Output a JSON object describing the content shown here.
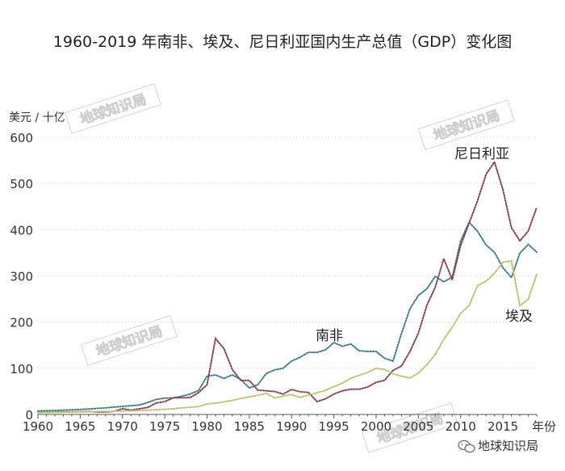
{
  "chart_data": {
    "type": "line",
    "title": "1960-2019 年南非、埃及、尼日利亚国内生产总值（GDP）变化图",
    "ylabel": "美元 / 十亿",
    "xlabel": "年份",
    "xlim": [
      1960,
      2019
    ],
    "ylim": [
      0,
      600
    ],
    "x_ticks": [
      1960,
      1965,
      1970,
      1975,
      1980,
      1985,
      1990,
      1995,
      2000,
      2005,
      2010,
      2015
    ],
    "y_ticks": [
      0,
      100,
      200,
      300,
      400,
      500,
      600
    ],
    "grid": true,
    "legend": "direct-labels",
    "series": [
      {
        "name": "南非",
        "color": "#3f7f86",
        "x": [
          1960,
          1961,
          1962,
          1963,
          1964,
          1965,
          1966,
          1967,
          1968,
          1969,
          1970,
          1971,
          1972,
          1973,
          1974,
          1975,
          1976,
          1977,
          1978,
          1979,
          1980,
          1981,
          1982,
          1983,
          1984,
          1985,
          1986,
          1987,
          1988,
          1989,
          1990,
          1991,
          1992,
          1993,
          1994,
          1995,
          1996,
          1997,
          1998,
          1999,
          2000,
          2001,
          2002,
          2003,
          2004,
          2005,
          2006,
          2007,
          2008,
          2009,
          2010,
          2011,
          2012,
          2013,
          2014,
          2015,
          2016,
          2017,
          2018,
          2019
        ],
        "values": [
          7.6,
          8.0,
          8.4,
          9.2,
          10.0,
          10.9,
          11.9,
          13.2,
          14.1,
          15.9,
          17.3,
          18.9,
          20.3,
          26.0,
          32.6,
          35.4,
          35.9,
          39.4,
          44.0,
          51.7,
          82.9,
          85.5,
          78.1,
          85.6,
          75.7,
          57.2,
          64.2,
          88.5,
          96.6,
          100.1,
          115.6,
          123.9,
          134.5,
          134.3,
          139.8,
          155.5,
          147.6,
          152.6,
          137.8,
          136.4,
          136.4,
          121.5,
          115.5,
          175.3,
          228.6,
          257.8,
          271.8,
          299.0,
          287.1,
          297.2,
          375.3,
          416.4,
          396.3,
          366.8,
          351.0,
          317.6,
          296.4,
          349.4,
          368.3,
          351.4
        ]
      },
      {
        "name": "尼日利亚",
        "color": "#8a4150",
        "x": [
          1960,
          1961,
          1962,
          1963,
          1964,
          1965,
          1966,
          1967,
          1968,
          1969,
          1970,
          1971,
          1972,
          1973,
          1974,
          1975,
          1976,
          1977,
          1978,
          1979,
          1980,
          1981,
          1982,
          1983,
          1984,
          1985,
          1986,
          1987,
          1988,
          1989,
          1990,
          1991,
          1992,
          1993,
          1994,
          1995,
          1996,
          1997,
          1998,
          1999,
          2000,
          2001,
          2002,
          2003,
          2004,
          2005,
          2006,
          2007,
          2008,
          2009,
          2010,
          2011,
          2012,
          2013,
          2014,
          2015,
          2016,
          2017,
          2018,
          2019
        ],
        "values": [
          4.2,
          4.5,
          4.9,
          5.2,
          5.6,
          5.9,
          6.4,
          5.2,
          5.2,
          6.6,
          12.5,
          9.2,
          12.3,
          15.2,
          24.8,
          27.8,
          36.0,
          36.0,
          36.5,
          47.2,
          64.2,
          164.5,
          142.8,
          97.1,
          73.5,
          73.7,
          52.8,
          51.3,
          49.7,
          44.0,
          54.0,
          49.1,
          47.8,
          27.8,
          33.8,
          44.1,
          51.1,
          54.5,
          54.6,
          59.4,
          69.4,
          74.0,
          95.4,
          104.9,
          136.4,
          176.1,
          236.1,
          275.6,
          337.0,
          291.9,
          366.0,
          414.4,
          463.0,
          520.1,
          546.7,
          486.8,
          404.6,
          375.7,
          397.2,
          448.1
        ]
      },
      {
        "name": "埃及",
        "color": "#bcc36d",
        "x": [
          1960,
          1961,
          1962,
          1963,
          1964,
          1965,
          1966,
          1967,
          1968,
          1969,
          1970,
          1971,
          1972,
          1973,
          1974,
          1975,
          1976,
          1977,
          1978,
          1979,
          1980,
          1981,
          1982,
          1983,
          1984,
          1985,
          1986,
          1987,
          1988,
          1989,
          1990,
          1991,
          1992,
          1993,
          1994,
          1995,
          1996,
          1997,
          1998,
          1999,
          2000,
          2001,
          2002,
          2003,
          2004,
          2005,
          2006,
          2007,
          2008,
          2009,
          2010,
          2011,
          2012,
          2013,
          2014,
          2015,
          2016,
          2017,
          2018,
          2019
        ],
        "values": [
          4.0,
          4.3,
          4.6,
          4.9,
          5.3,
          5.6,
          6.0,
          6.3,
          6.4,
          6.9,
          7.3,
          7.8,
          8.4,
          9.1,
          10.1,
          11.2,
          12.5,
          14.1,
          15.6,
          17.0,
          22.9,
          24.4,
          27.3,
          30.6,
          34.6,
          38.2,
          41.4,
          45.4,
          35.6,
          39.6,
          43.1,
          36.9,
          42.0,
          47.0,
          51.9,
          60.2,
          67.6,
          78.4,
          84.8,
          90.7,
          99.8,
          97.6,
          87.9,
          82.9,
          78.8,
          89.7,
          107.5,
          130.5,
          162.8,
          189.1,
          218.9,
          236.0,
          279.1,
          288.4,
          305.6,
          329.4,
          332.4,
          235.7,
          249.7,
          303.1
        ]
      }
    ]
  },
  "annotations": {
    "south_africa_label": "南非",
    "nigeria_label": "尼日利亚",
    "egypt_label": "埃及"
  },
  "watermark": "地球知识局",
  "footer": {
    "icon": "wechat-icon",
    "account": "地球知识局"
  }
}
